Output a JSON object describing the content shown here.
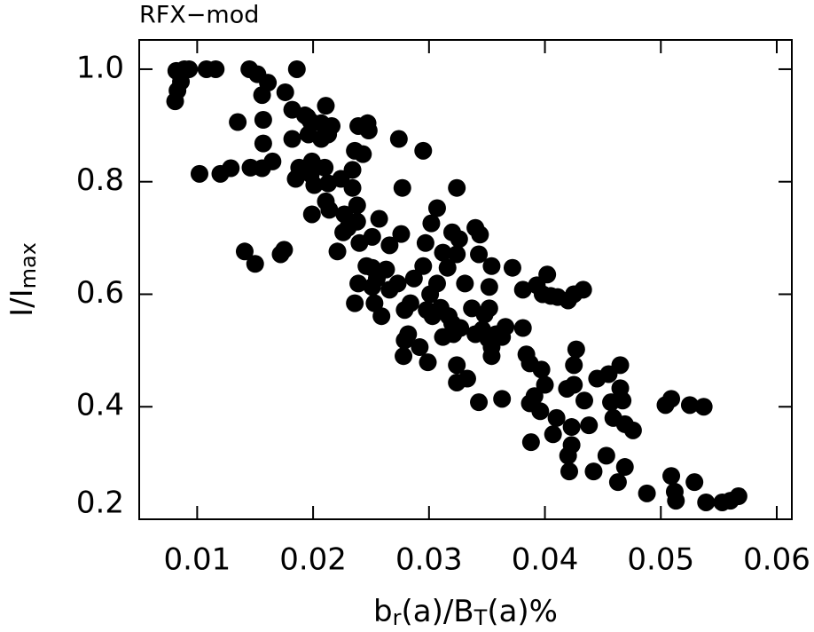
{
  "chart_data": {
    "type": "scatter",
    "title": "RFX−mod",
    "xlabel_parts": [
      "b",
      "r",
      "(a)/B",
      "T",
      "(a)%"
    ],
    "ylabel_parts": [
      "I/I",
      "max"
    ],
    "color": "#000000",
    "xlim": [
      0.005,
      0.0613
    ],
    "ylim": [
      0.2,
      1.052
    ],
    "xticks": [
      0.01,
      0.02,
      0.03,
      0.04,
      0.05,
      0.06
    ],
    "yticks": [
      {
        "value": 0.2,
        "label": "0.2"
      },
      {
        "value": 0.4,
        "label": "0.4"
      },
      {
        "value": 0.6,
        "label": "0.6"
      },
      {
        "value": 0.8,
        "label": "0.8"
      },
      {
        "value": 1.0,
        "label": "1.0"
      }
    ],
    "x": [
      0.0082,
      0.0089,
      0.0093,
      0.0086,
      0.0083,
      0.0081,
      0.0108,
      0.0116,
      0.0145,
      0.0152,
      0.0161,
      0.0186,
      0.0176,
      0.0182,
      0.0193,
      0.0198,
      0.0196,
      0.0182,
      0.0195,
      0.0207,
      0.0213,
      0.0216,
      0.0211,
      0.0156,
      0.0135,
      0.0157,
      0.0207,
      0.0239,
      0.0247,
      0.0248,
      0.0274,
      0.0295,
      0.0102,
      0.012,
      0.0129,
      0.0146,
      0.0156,
      0.0165,
      0.0157,
      0.0185,
      0.0188,
      0.0199,
      0.021,
      0.0198,
      0.0201,
      0.0213,
      0.0224,
      0.0234,
      0.0236,
      0.0243,
      0.0234,
      0.0238,
      0.0227,
      0.0211,
      0.0199,
      0.0214,
      0.023,
      0.0226,
      0.0238,
      0.024,
      0.0257,
      0.0251,
      0.0246,
      0.0221,
      0.0239,
      0.0236,
      0.0251,
      0.0266,
      0.0276,
      0.0277,
      0.0263,
      0.0255,
      0.0251,
      0.0253,
      0.0259,
      0.0266,
      0.0273,
      0.0287,
      0.0295,
      0.0297,
      0.0302,
      0.0307,
      0.0324,
      0.032,
      0.0326,
      0.0324,
      0.0312,
      0.0316,
      0.0307,
      0.0301,
      0.0298,
      0.0303,
      0.0284,
      0.0279,
      0.0282,
      0.0279,
      0.0292,
      0.0278,
      0.0299,
      0.031,
      0.0317,
      0.032,
      0.0327,
      0.0321,
      0.0312,
      0.034,
      0.0344,
      0.0343,
      0.0331,
      0.0337,
      0.034,
      0.0346,
      0.0352,
      0.0354,
      0.0352,
      0.0348,
      0.0351,
      0.0358,
      0.0366,
      0.0354,
      0.0363,
      0.0354,
      0.0333,
      0.0324,
      0.0324,
      0.0343,
      0.0363,
      0.0381,
      0.0393,
      0.0398,
      0.0402,
      0.0405,
      0.0411,
      0.042,
      0.0425,
      0.0433,
      0.0381,
      0.0384,
      0.0387,
      0.0397,
      0.04,
      0.0391,
      0.0387,
      0.0396,
      0.0388,
      0.0407,
      0.041,
      0.0419,
      0.0427,
      0.0425,
      0.0425,
      0.0434,
      0.0423,
      0.0423,
      0.042,
      0.0438,
      0.0445,
      0.0455,
      0.0465,
      0.0465,
      0.0457,
      0.0467,
      0.0459,
      0.0469,
      0.0476,
      0.0421,
      0.0442,
      0.0453,
      0.0469,
      0.0463,
      0.0488,
      0.0504,
      0.0509,
      0.0525,
      0.0537,
      0.0509,
      0.0512,
      0.0513,
      0.0529,
      0.0539,
      0.0553,
      0.0567,
      0.056,
      0.0372,
      0.0141,
      0.015,
      0.0172,
      0.0175
    ],
    "values": [
      0.997,
      1.0,
      1.0,
      0.978,
      0.962,
      0.943,
      1.0,
      1.0,
      1.0,
      0.991,
      0.976,
      1.0,
      0.959,
      0.928,
      0.918,
      0.907,
      0.884,
      0.876,
      0.915,
      0.904,
      0.884,
      0.899,
      0.935,
      0.954,
      0.906,
      0.91,
      0.876,
      0.899,
      0.904,
      0.891,
      0.876,
      0.855,
      0.814,
      0.814,
      0.824,
      0.825,
      0.824,
      0.836,
      0.868,
      0.805,
      0.825,
      0.836,
      0.825,
      0.813,
      0.794,
      0.797,
      0.805,
      0.821,
      0.855,
      0.849,
      0.789,
      0.758,
      0.742,
      0.765,
      0.742,
      0.75,
      0.718,
      0.71,
      0.729,
      0.691,
      0.734,
      0.702,
      0.65,
      0.676,
      0.619,
      0.584,
      0.647,
      0.687,
      0.707,
      0.789,
      0.644,
      0.628,
      0.613,
      0.584,
      0.561,
      0.608,
      0.619,
      0.628,
      0.65,
      0.691,
      0.726,
      0.753,
      0.789,
      0.71,
      0.698,
      0.671,
      0.674,
      0.647,
      0.619,
      0.6,
      0.572,
      0.561,
      0.584,
      0.572,
      0.529,
      0.518,
      0.506,
      0.49,
      0.479,
      0.576,
      0.561,
      0.548,
      0.54,
      0.529,
      0.524,
      0.718,
      0.706,
      0.671,
      0.619,
      0.575,
      0.529,
      0.537,
      0.613,
      0.65,
      0.575,
      0.564,
      0.521,
      0.529,
      0.542,
      0.506,
      0.524,
      0.49,
      0.45,
      0.474,
      0.443,
      0.408,
      0.414,
      0.608,
      0.616,
      0.6,
      0.635,
      0.597,
      0.595,
      0.589,
      0.6,
      0.608,
      0.54,
      0.493,
      0.477,
      0.466,
      0.439,
      0.419,
      0.406,
      0.392,
      0.337,
      0.351,
      0.38,
      0.432,
      0.502,
      0.474,
      0.439,
      0.411,
      0.364,
      0.332,
      0.313,
      0.367,
      0.45,
      0.458,
      0.474,
      0.433,
      0.408,
      0.411,
      0.38,
      0.369,
      0.358,
      0.285,
      0.285,
      0.313,
      0.293,
      0.266,
      0.246,
      0.403,
      0.414,
      0.403,
      0.4,
      0.277,
      0.249,
      0.233,
      0.266,
      0.23,
      0.23,
      0.241,
      0.233,
      0.647,
      0.676,
      0.654,
      0.671,
      0.679
    ]
  }
}
